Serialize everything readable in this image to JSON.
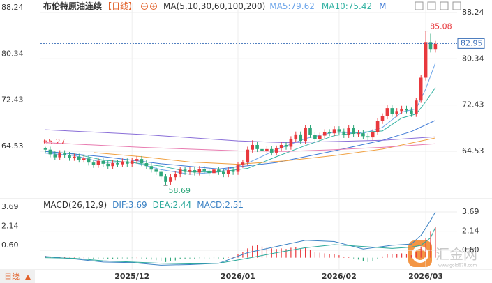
{
  "chart_data": [
    {
      "type": "candlestick",
      "title": "布伦特原油连续",
      "subtitle": "【日线】",
      "indicator": "MA(5,10,30,60,100,200)",
      "legend": [
        {
          "label": "MA5:79.62",
          "color": "#6ea6ea"
        },
        {
          "label": "MA10:75.42",
          "color": "#35b3a3"
        },
        {
          "label": "M",
          "color": "#3f7ad6"
        }
      ],
      "categories": [
        null,
        null,
        null,
        null,
        null,
        null,
        null,
        null,
        null,
        null,
        null,
        null,
        null,
        null,
        null,
        null,
        null,
        null,
        "2025/12",
        null,
        null,
        null,
        null,
        null,
        null,
        null,
        null,
        null,
        null,
        null,
        null,
        null,
        null,
        null,
        null,
        null,
        null,
        null,
        null,
        null,
        "2026/01",
        null,
        null,
        null,
        null,
        null,
        null,
        null,
        null,
        null,
        null,
        null,
        null,
        null,
        null,
        null,
        null,
        null,
        null,
        null,
        null,
        "2026/02",
        null,
        null,
        null,
        null,
        null,
        null,
        null,
        null,
        null,
        null,
        null,
        null,
        null,
        null,
        null,
        null,
        null,
        "2026/03",
        null,
        null
      ],
      "open": [
        65.0,
        64.8,
        64.0,
        63.5,
        64.2,
        63.9,
        63.4,
        63.6,
        63.1,
        63.3,
        62.6,
        62.2,
        62.9,
        62.4,
        62.0,
        62.5,
        62.3,
        62.8,
        62.4,
        62.9,
        63.2,
        62.5,
        62.0,
        61.4,
        61.0,
        60.2,
        59.3,
        60.1,
        60.6,
        61.4,
        61.0,
        61.3,
        60.9,
        61.5,
        61.2,
        60.8,
        61.4,
        61.0,
        60.6,
        61.3,
        61.0,
        62.2,
        62.6,
        64.8,
        65.6,
        64.9,
        64.6,
        64.9,
        64.3,
        65.0,
        65.6,
        65.3,
        66.6,
        67.4,
        66.3,
        68.5,
        67.3,
        66.6,
        67.2,
        67.8,
        67.6,
        68.3,
        67.9,
        67.3,
        68.5,
        67.5,
        67.6,
        67.1,
        66.9,
        67.8,
        69.7,
        70.5,
        71.9,
        70.9,
        71.4,
        71.8,
        71.5,
        70.9,
        73.2,
        77.1,
        83.2,
        81.9
      ],
      "high": [
        65.27,
        65.3,
        64.5,
        64.7,
        64.7,
        64.4,
        64.1,
        64.1,
        63.8,
        63.8,
        63.1,
        63.4,
        63.4,
        62.9,
        63.0,
        63.0,
        63.3,
        63.3,
        63.4,
        63.7,
        63.7,
        63.0,
        62.5,
        61.9,
        61.5,
        60.7,
        60.6,
        61.1,
        61.9,
        61.9,
        61.8,
        61.8,
        62.0,
        62.0,
        61.7,
        61.9,
        61.9,
        61.5,
        61.8,
        61.8,
        62.7,
        63.1,
        65.3,
        66.4,
        66.1,
        65.4,
        65.4,
        65.4,
        65.5,
        66.1,
        66.1,
        67.1,
        67.9,
        67.9,
        69.0,
        69.0,
        67.8,
        67.7,
        68.3,
        68.3,
        68.8,
        68.8,
        68.4,
        69.0,
        69.0,
        68.1,
        68.1,
        67.6,
        68.3,
        70.2,
        71.0,
        72.4,
        72.4,
        71.9,
        72.3,
        72.3,
        72.0,
        73.7,
        77.6,
        85.08,
        84.6,
        83.4
      ],
      "low": [
        64.3,
        63.5,
        63.0,
        63.0,
        63.4,
        62.9,
        62.9,
        62.6,
        62.6,
        62.1,
        61.7,
        61.7,
        61.9,
        61.5,
        61.5,
        61.8,
        61.8,
        61.9,
        61.9,
        62.4,
        62.0,
        61.5,
        60.9,
        60.5,
        59.7,
        58.69,
        58.8,
        59.6,
        60.1,
        60.5,
        60.5,
        60.4,
        60.4,
        60.7,
        60.3,
        60.3,
        60.5,
        60.1,
        60.1,
        60.5,
        60.5,
        61.7,
        62.1,
        64.3,
        64.4,
        64.1,
        64.1,
        63.8,
        63.8,
        64.5,
        64.8,
        64.8,
        66.1,
        65.8,
        65.8,
        66.8,
        66.1,
        66.1,
        66.7,
        67.1,
        67.1,
        67.4,
        66.8,
        66.8,
        67.0,
        67.0,
        66.6,
        66.4,
        66.4,
        67.3,
        69.2,
        70.0,
        70.4,
        70.4,
        70.9,
        71.0,
        70.4,
        70.4,
        72.8,
        76.6,
        81.4,
        81.4
      ],
      "close": [
        64.8,
        64.0,
        63.5,
        64.2,
        63.9,
        63.4,
        63.6,
        63.1,
        63.3,
        62.6,
        62.2,
        62.9,
        62.4,
        62.0,
        62.5,
        62.3,
        62.8,
        62.4,
        62.9,
        63.2,
        62.5,
        62.0,
        61.4,
        61.0,
        60.2,
        59.3,
        60.1,
        60.6,
        61.4,
        61.0,
        61.3,
        60.9,
        61.5,
        61.2,
        60.8,
        61.4,
        61.0,
        60.6,
        61.3,
        61.0,
        62.2,
        62.6,
        64.8,
        65.6,
        64.9,
        64.6,
        64.9,
        64.3,
        65.0,
        65.6,
        65.3,
        66.6,
        67.4,
        66.3,
        68.5,
        67.3,
        66.6,
        67.2,
        67.8,
        67.6,
        68.3,
        67.9,
        67.3,
        68.5,
        67.5,
        67.6,
        67.1,
        66.9,
        67.8,
        69.7,
        70.5,
        71.9,
        70.9,
        71.4,
        71.8,
        71.5,
        70.9,
        73.2,
        77.1,
        83.2,
        81.9,
        82.9
      ],
      "up_color": "#e8383d",
      "down_color": "#2ea77a",
      "lines": [
        {
          "color": "#6ea6ea",
          "x": [
            0,
            6,
            12,
            18,
            24,
            30,
            36,
            42,
            48,
            54,
            60,
            66,
            70,
            74,
            77,
            79,
            81
          ],
          "values": [
            64.2,
            63.8,
            62.6,
            62.7,
            61.4,
            60.6,
            61.0,
            62.5,
            64.8,
            66.7,
            67.8,
            67.6,
            68.6,
            71.2,
            71.8,
            75.2,
            79.62
          ]
        },
        {
          "color": "#35b3a3",
          "x": [
            0,
            6,
            12,
            18,
            24,
            30,
            36,
            42,
            48,
            54,
            60,
            66,
            70,
            74,
            77,
            79,
            81
          ],
          "values": [
            64.5,
            64.1,
            63.0,
            62.6,
            62.0,
            61.0,
            61.0,
            61.6,
            63.6,
            65.5,
            67.2,
            67.8,
            68.0,
            70.2,
            70.9,
            73.0,
            75.42
          ]
        },
        {
          "color": "#3f7ad6",
          "x": [
            0,
            12,
            24,
            36,
            48,
            60,
            70,
            76,
            81
          ],
          "values": [
            64.5,
            63.6,
            62.4,
            61.5,
            62.6,
            64.6,
            66.4,
            67.9,
            69.8
          ]
        },
        {
          "color": "#f0a040",
          "x": [
            10,
            20,
            30,
            40,
            50,
            60,
            70,
            81
          ],
          "values": [
            64.3,
            63.6,
            62.7,
            62.3,
            62.9,
            63.8,
            64.9,
            66.8
          ]
        },
        {
          "color": "#e87bb0",
          "x": [
            0,
            20,
            40,
            50,
            60,
            70,
            81
          ],
          "values": [
            66.0,
            65.2,
            64.6,
            64.5,
            64.8,
            65.2,
            65.8
          ]
        },
        {
          "color": "#8a6fd8",
          "x": [
            0,
            20,
            40,
            50,
            60,
            70,
            81
          ],
          "values": [
            68.2,
            67.4,
            66.3,
            66.0,
            66.2,
            66.4,
            67.0
          ]
        }
      ],
      "ylim": [
        56.66,
        89.79
      ],
      "yticks": [
        88.24,
        80.34,
        72.43,
        64.53
      ],
      "grid": true,
      "last_price": 82.95,
      "last_price_color": "#3a6fb8"
    },
    {
      "type": "macd",
      "title": "MACD(26,12,9)",
      "legend": [
        {
          "label": "DIF:3.69",
          "color": "#3b82c4"
        },
        {
          "label": "DEA:2.44",
          "color": "#2aa89a"
        },
        {
          "label": "MACD:2.51",
          "color": "#3b82c4"
        }
      ],
      "values": [
        0.15,
        0.1,
        0.05,
        0.08,
        0.05,
        0.0,
        0.02,
        -0.02,
        0.0,
        -0.05,
        -0.08,
        -0.05,
        -0.08,
        -0.1,
        -0.08,
        -0.06,
        -0.04,
        -0.05,
        -0.02,
        0.0,
        -0.05,
        -0.1,
        -0.15,
        -0.2,
        -0.28,
        -0.35,
        -0.3,
        -0.22,
        -0.12,
        -0.1,
        -0.06,
        -0.08,
        -0.03,
        -0.04,
        -0.08,
        -0.02,
        -0.04,
        -0.08,
        0.02,
        0.05,
        0.3,
        0.45,
        0.75,
        0.95,
        1.0,
        0.9,
        0.8,
        0.75,
        0.7,
        0.75,
        0.7,
        0.8,
        0.85,
        0.7,
        0.8,
        0.6,
        0.45,
        0.4,
        0.35,
        0.3,
        0.3,
        0.2,
        0.05,
        0.05,
        -0.05,
        -0.15,
        -0.25,
        -0.35,
        -0.3,
        -0.1,
        0.1,
        0.3,
        0.3,
        0.3,
        0.35,
        0.3,
        0.2,
        0.45,
        0.9,
        1.6,
        2.1,
        2.51
      ],
      "up_color": "#e8383d",
      "down_color": "#2ea77a",
      "series": [
        {
          "color": "#3b82c4",
          "x": [
            0,
            6,
            12,
            18,
            24,
            30,
            36,
            42,
            48,
            54,
            60,
            66,
            72,
            76,
            78,
            80,
            81
          ],
          "values": [
            0.1,
            -0.1,
            -0.35,
            -0.4,
            -0.6,
            -0.55,
            -0.45,
            0.4,
            0.9,
            1.4,
            1.3,
            0.7,
            1.0,
            1.1,
            1.8,
            3.0,
            3.69
          ]
        },
        {
          "color": "#2aa89a",
          "x": [
            0,
            6,
            12,
            18,
            24,
            30,
            36,
            42,
            48,
            54,
            60,
            66,
            72,
            76,
            78,
            80,
            81
          ],
          "values": [
            0.0,
            -0.05,
            -0.25,
            -0.35,
            -0.45,
            -0.5,
            -0.45,
            -0.05,
            0.4,
            0.8,
            1.05,
            0.9,
            0.75,
            0.85,
            1.0,
            1.6,
            2.44
          ]
        }
      ],
      "ylim": [
        -0.75,
        4.59
      ],
      "yticks": [
        3.69,
        2.14,
        {
          "value": 0.6,
          "label": "0.60"
        }
      ],
      "grid": true
    }
  ],
  "footer": {
    "period": "日线",
    "watermark": "汇金网",
    "watermark_url": "www.gold678.com"
  }
}
